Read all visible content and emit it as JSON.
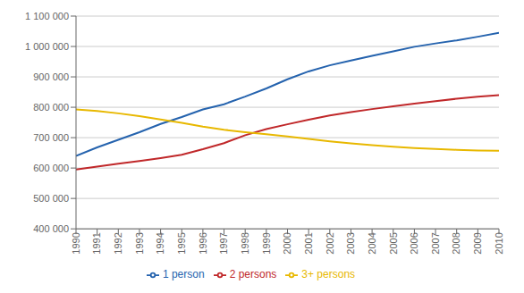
{
  "chart_data": {
    "type": "line",
    "x": [
      1990,
      1991,
      1992,
      1993,
      1994,
      1995,
      1996,
      1997,
      1998,
      1999,
      2000,
      2001,
      2002,
      2003,
      2004,
      2005,
      2006,
      2007,
      2008,
      2009,
      2010
    ],
    "series": [
      {
        "name": "1 person",
        "color": "#2563ae",
        "values": [
          640000,
          668000,
          693000,
          718000,
          745000,
          768000,
          793000,
          810000,
          835000,
          862000,
          892000,
          918000,
          938000,
          954000,
          969000,
          984000,
          999000,
          1010000,
          1020000,
          1032000,
          1045000
        ]
      },
      {
        "name": "2 persons",
        "color": "#c0282a",
        "values": [
          595000,
          605000,
          614000,
          623000,
          633000,
          644000,
          662000,
          682000,
          708000,
          728000,
          744000,
          759000,
          773000,
          784000,
          794000,
          803000,
          812000,
          820000,
          828000,
          835000,
          840000
        ]
      },
      {
        "name": "3+ persons",
        "color": "#e8b800",
        "values": [
          793000,
          788000,
          780000,
          771000,
          760000,
          749000,
          736000,
          726000,
          718000,
          711000,
          704000,
          696000,
          688000,
          681000,
          675000,
          670000,
          666000,
          663000,
          660000,
          658000,
          657000
        ]
      }
    ],
    "xlim": [
      1990,
      2010
    ],
    "xticks": [
      1990,
      1991,
      1992,
      1993,
      1994,
      1995,
      1996,
      1997,
      1998,
      1999,
      2000,
      2001,
      2002,
      2003,
      2004,
      2005,
      2006,
      2007,
      2008,
      2009,
      2010
    ],
    "ylim": [
      400000,
      1100000
    ],
    "yticks": [
      {
        "value": 400000,
        "label": "400 000"
      },
      {
        "value": 500000,
        "label": "500 000"
      },
      {
        "value": 600000,
        "label": "600 000"
      },
      {
        "value": 700000,
        "label": "700 000"
      },
      {
        "value": 800000,
        "label": "800 000"
      },
      {
        "value": 900000,
        "label": "900 000"
      },
      {
        "value": 1000000,
        "label": "1 000 000"
      },
      {
        "value": 1100000,
        "label": "1 100 000"
      }
    ],
    "grid": true,
    "legend": "bottom"
  }
}
